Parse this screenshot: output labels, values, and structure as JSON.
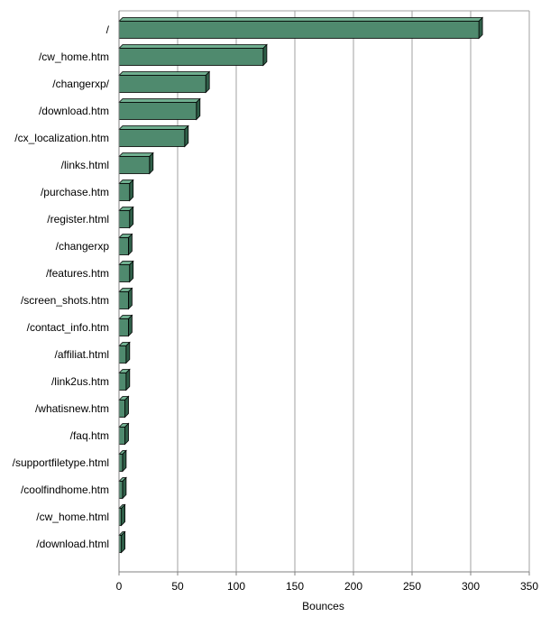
{
  "chart_data": {
    "type": "bar",
    "orientation": "horizontal",
    "categories": [
      "/",
      "/cw_home.htm",
      "/changerxp/",
      "/download.htm",
      "/cx_localization.htm",
      "/links.html",
      "/purchase.htm",
      "/register.html",
      "/changerxp",
      "/features.htm",
      "/screen_shots.htm",
      "/contact_info.htm",
      "/affiliat.html",
      "/link2us.htm",
      "/whatisnew.htm",
      "/faq.htm",
      "/supportfiletype.html",
      "/coolfindhome.htm",
      "/cw_home.html",
      "/download.html"
    ],
    "values": [
      307,
      123,
      74,
      66,
      56,
      26,
      9,
      9,
      8,
      9,
      8,
      8,
      6,
      6,
      5,
      5,
      3,
      3,
      2,
      2
    ],
    "xlabel": "Bounces",
    "xlim": [
      0,
      350
    ],
    "xticks": [
      "0",
      "50",
      "100",
      "150",
      "200",
      "250",
      "300",
      "350"
    ],
    "grid": true,
    "bar_color": "#4f8a6e",
    "bar_top_color": "#6fae8f",
    "bar_side_color": "#2f5e48"
  }
}
